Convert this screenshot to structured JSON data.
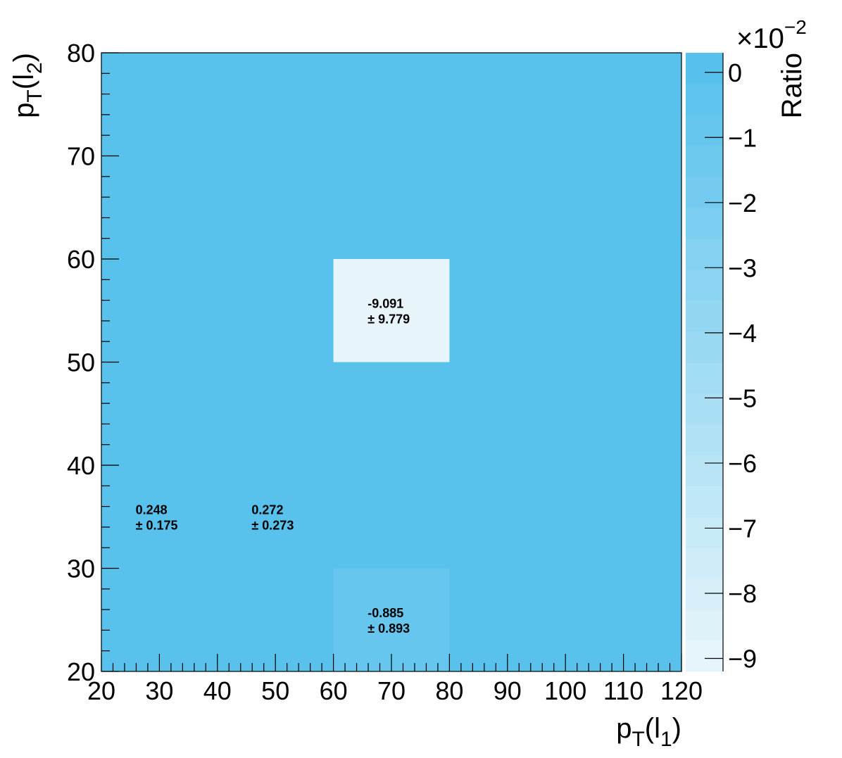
{
  "chart_data": {
    "type": "heatmap",
    "xlabel": "p_T(l_1)",
    "ylabel": "p_T(l_2)",
    "zlabel": "Ratio",
    "z_multiplier": "×10^−2",
    "xlim": [
      20,
      120
    ],
    "ylim": [
      20,
      80
    ],
    "zlim": [
      -9.2,
      0.3
    ],
    "x_ticks": [
      "20",
      "30",
      "40",
      "50",
      "60",
      "70",
      "80",
      "90",
      "100",
      "110",
      "120"
    ],
    "y_ticks": [
      "20",
      "30",
      "40",
      "50",
      "60",
      "70",
      "80"
    ],
    "z_ticks": [
      "0",
      "−1",
      "−2",
      "−3",
      "−4",
      "−5",
      "−6",
      "−7",
      "−8",
      "−9"
    ],
    "z_tick_values": [
      0,
      -1,
      -2,
      -3,
      -4,
      -5,
      -6,
      -7,
      -8,
      -9
    ],
    "background_value": 0,
    "colors": {
      "high": "#53bfec",
      "low": "#e9f6fb"
    },
    "cells": [
      {
        "x0": 60,
        "x1": 80,
        "y0": 50,
        "y1": 60,
        "value": -9.091,
        "label": "-9.091",
        "error": "± 9.779",
        "filled": true
      },
      {
        "x0": 60,
        "x1": 80,
        "y0": 20,
        "y1": 30,
        "value": -0.885,
        "label": "-0.885",
        "error": "± 0.893",
        "filled": true
      },
      {
        "x0": 20,
        "x1": 40,
        "y0": 30,
        "y1": 40,
        "value": 0.248,
        "label": "0.248",
        "error": "± 0.175",
        "filled": false
      },
      {
        "x0": 40,
        "x1": 60,
        "y0": 30,
        "y1": 40,
        "value": 0.272,
        "label": "0.272",
        "error": "± 0.273",
        "filled": false
      }
    ]
  }
}
